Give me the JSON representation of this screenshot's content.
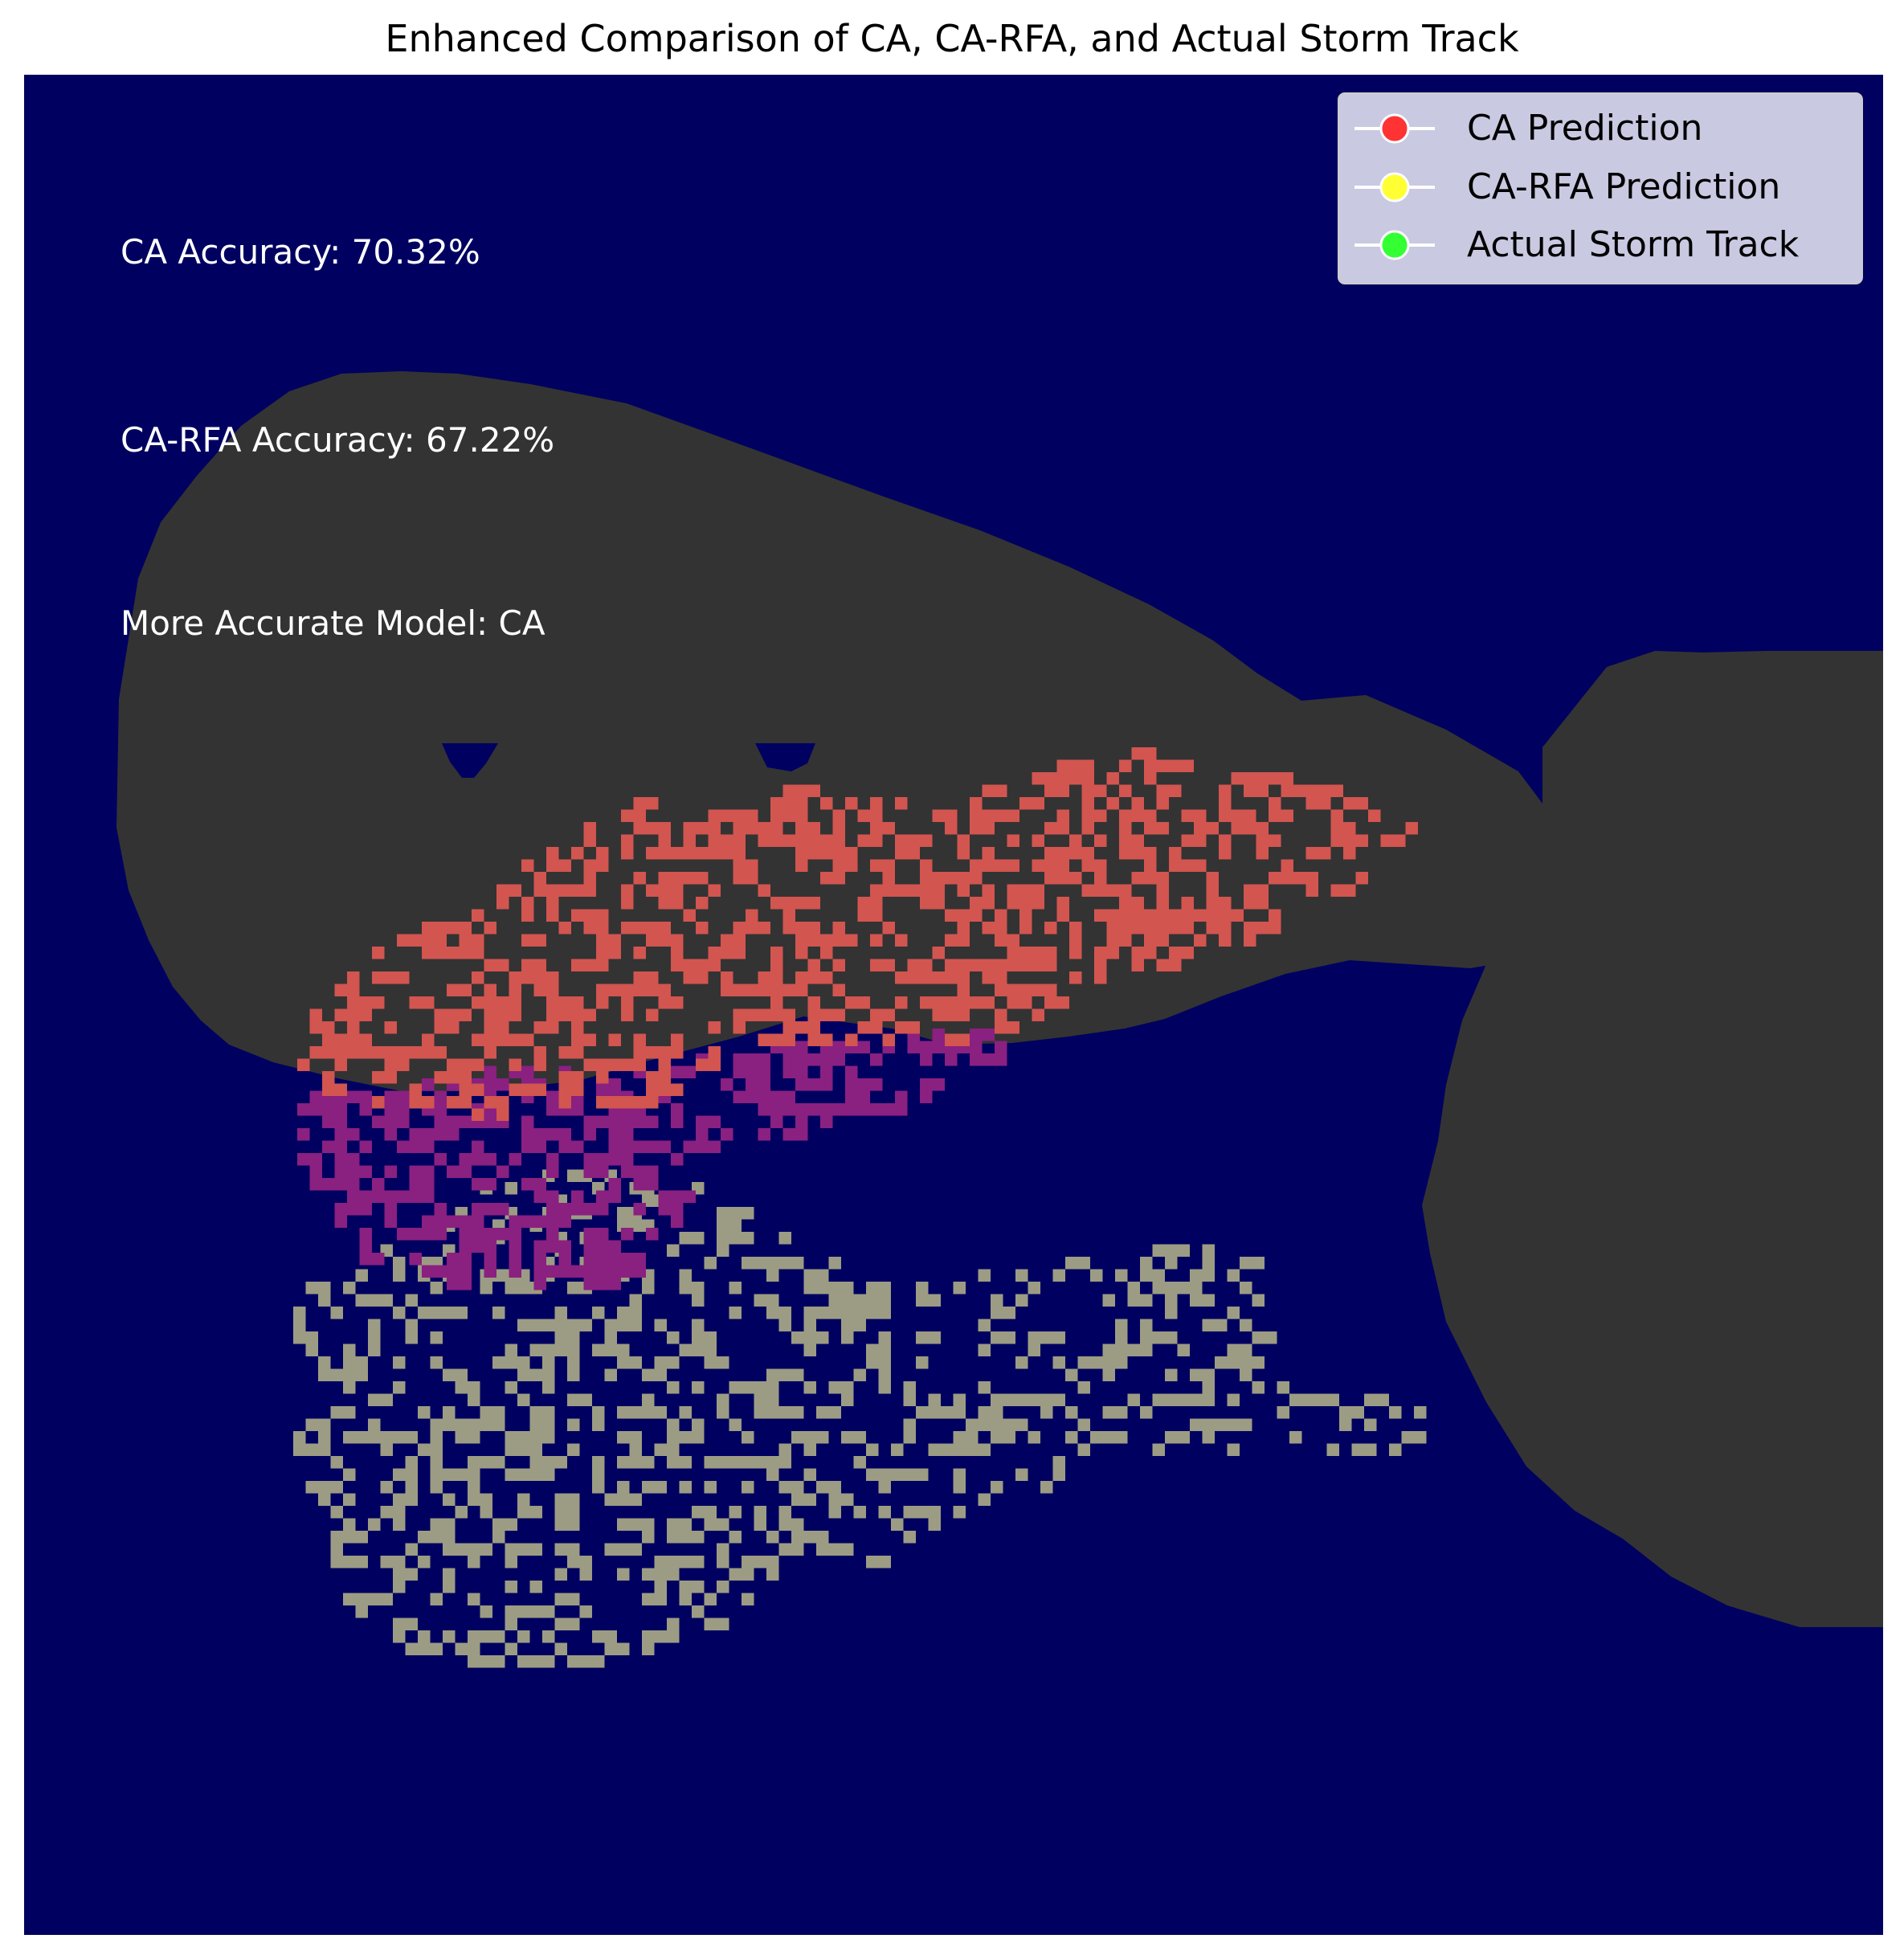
{
  "chart_data": {
    "type": "heatmap",
    "title": "Enhanced Comparison of CA, CA-RFA, and Actual Storm Track",
    "xlabel": "",
    "ylabel": "",
    "axes_visible": false,
    "grid": false,
    "legend_placement": "top-right",
    "legend": [
      {
        "label": "CA Prediction",
        "marker_color": "#ff3333"
      },
      {
        "label": "CA-RFA Prediction",
        "marker_color": "#ffff33"
      },
      {
        "label": "Actual Storm Track",
        "marker_color": "#33ff33"
      }
    ],
    "annotations": [
      {
        "key": "ca_accuracy",
        "text": "CA Accuracy: 70.32%"
      },
      {
        "key": "carfa_accuracy",
        "text": "CA-RFA Accuracy: 67.22%"
      },
      {
        "key": "more_accurate",
        "text": "More Accurate Model: CA"
      }
    ],
    "metrics": {
      "ca_accuracy_percent": 70.32,
      "carfa_accuracy_percent": 67.22,
      "more_accurate_model": "CA"
    },
    "colors": {
      "background": "#000060",
      "land": "#333333",
      "ca_prediction_cells": "#d25550",
      "carfa_prediction_cells": "#8a2080",
      "actual_track_cells": "#9c9c84"
    }
  }
}
